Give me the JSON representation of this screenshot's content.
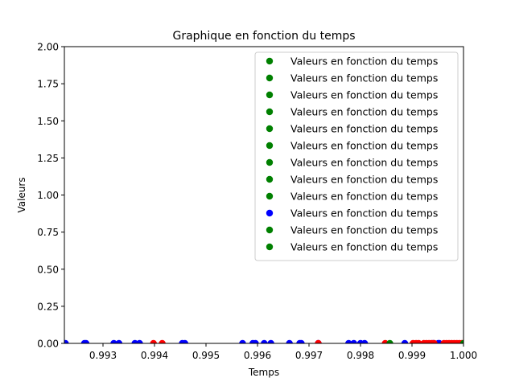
{
  "chart_data": {
    "type": "scatter",
    "title": "Graphique en fonction du temps",
    "xlabel": "Temps",
    "ylabel": "Valeurs",
    "xlim": [
      0.99225,
      1.0
    ],
    "ylim": [
      0.0,
      2.0
    ],
    "xticks": [
      0.993,
      0.994,
      0.995,
      0.996,
      0.997,
      0.998,
      0.999,
      1.0
    ],
    "xtick_labels": [
      "0.993",
      "0.994",
      "0.995",
      "0.996",
      "0.997",
      "0.998",
      "0.999",
      "1.000"
    ],
    "yticks": [
      0.0,
      0.25,
      0.5,
      0.75,
      1.0,
      1.25,
      1.5,
      1.75,
      2.0
    ],
    "ytick_labels": [
      "0.00",
      "0.25",
      "0.50",
      "0.75",
      "1.00",
      "1.25",
      "1.50",
      "1.75",
      "2.00"
    ],
    "grid": false,
    "legend_position": "top-right",
    "legend_entries": [
      {
        "label": "Valeurs en fonction du temps",
        "color": "#008000"
      },
      {
        "label": "Valeurs en fonction du temps",
        "color": "#008000"
      },
      {
        "label": "Valeurs en fonction du temps",
        "color": "#008000"
      },
      {
        "label": "Valeurs en fonction du temps",
        "color": "#008000"
      },
      {
        "label": "Valeurs en fonction du temps",
        "color": "#008000"
      },
      {
        "label": "Valeurs en fonction du temps",
        "color": "#008000"
      },
      {
        "label": "Valeurs en fonction du temps",
        "color": "#008000"
      },
      {
        "label": "Valeurs en fonction du temps",
        "color": "#008000"
      },
      {
        "label": "Valeurs en fonction du temps",
        "color": "#008000"
      },
      {
        "label": "Valeurs en fonction du temps",
        "color": "#0000ff"
      },
      {
        "label": "Valeurs en fonction du temps",
        "color": "#008000"
      },
      {
        "label": "Valeurs en fonction du temps",
        "color": "#008000"
      }
    ],
    "series": [
      {
        "color": "#0000ff",
        "x": [
          0.99227,
          0.99264,
          0.99267,
          0.99321,
          0.99331,
          0.99362,
          0.99371,
          0.99454,
          0.99459,
          0.99571,
          0.99591,
          0.99596,
          0.99613,
          0.99626,
          0.99662,
          0.99682,
          0.99685,
          0.99718,
          0.99777,
          0.99787,
          0.998,
          0.99808,
          0.99886,
          0.99941,
          0.99951,
          0.99953
        ],
        "y": [
          0,
          0,
          0,
          0,
          0,
          0,
          0,
          0,
          0,
          0,
          0,
          0,
          0,
          0,
          0,
          0,
          0,
          0,
          0,
          0,
          0,
          0,
          0,
          0,
          0,
          0
        ]
      },
      {
        "color": "#ff0000",
        "x": [
          0.99398,
          0.99415,
          0.99718,
          0.99848,
          0.99902,
          0.99908,
          0.99913,
          0.99923,
          0.99928,
          0.99933,
          0.99938,
          0.99943,
          0.99962,
          0.99967,
          0.99972,
          0.99977,
          0.99982,
          0.99987,
          0.99992,
          0.99997
        ],
        "y": [
          0,
          0,
          0,
          0,
          0,
          0,
          0,
          0,
          0,
          0,
          0,
          0,
          0,
          0,
          0,
          0,
          0,
          0,
          0,
          0
        ]
      },
      {
        "color": "#008000",
        "x": [
          0.99857,
          1.0
        ],
        "y": [
          0,
          0
        ]
      }
    ]
  }
}
